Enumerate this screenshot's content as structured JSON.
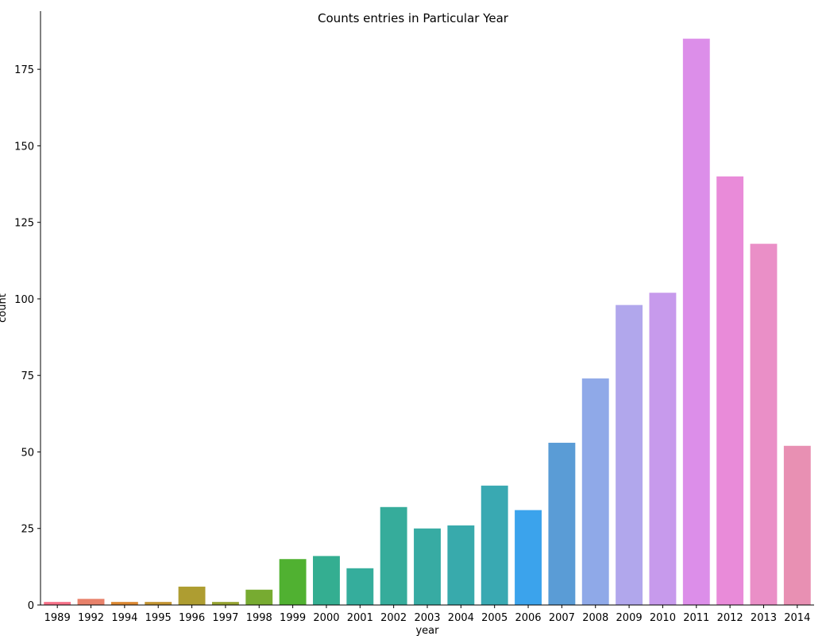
{
  "chart_data": {
    "type": "bar",
    "title": "Counts entries in Particular Year",
    "xlabel": "year",
    "ylabel": "count",
    "categories": [
      "1989",
      "1992",
      "1994",
      "1995",
      "1996",
      "1997",
      "1998",
      "1999",
      "2000",
      "2001",
      "2002",
      "2003",
      "2004",
      "2005",
      "2006",
      "2007",
      "2008",
      "2009",
      "2010",
      "2011",
      "2012",
      "2013",
      "2014"
    ],
    "values": [
      1,
      2,
      1,
      1,
      6,
      1,
      5,
      15,
      16,
      12,
      32,
      25,
      26,
      39,
      31,
      53,
      74,
      98,
      102,
      185,
      140,
      118,
      52
    ],
    "colors": [
      "#f77189",
      "#e8816a",
      "#dc8932",
      "#c39532",
      "#ae9d31",
      "#97a431",
      "#77ab31",
      "#50b131",
      "#34ae91",
      "#35ad9c",
      "#36ac9b",
      "#37aba3",
      "#38aaac",
      "#39a9b2",
      "#3ba3ec",
      "#5a9cd6",
      "#8fa9e8",
      "#b1a7ec",
      "#c79aec",
      "#dc8ee9",
      "#e98bd9",
      "#ea8fc7",
      "#e890b3"
    ],
    "yticks": [
      0,
      25,
      50,
      75,
      100,
      125,
      150,
      175
    ],
    "ylim": [
      0,
      194
    ],
    "grid": false,
    "legend": "none"
  }
}
